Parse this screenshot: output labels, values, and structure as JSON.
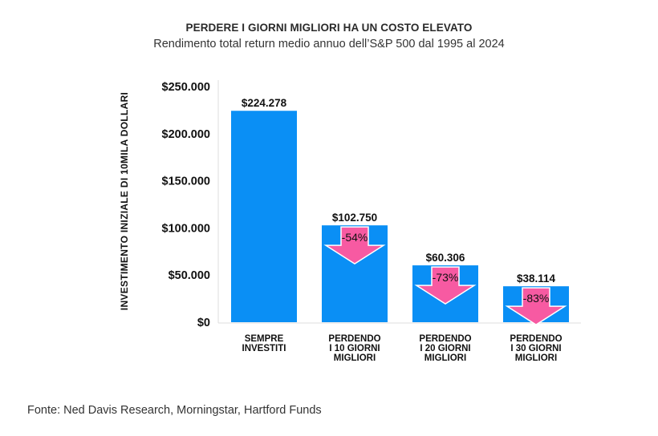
{
  "chart_data": {
    "type": "bar",
    "title": "PERDERE I GIORNI MIGLIORI HA UN COSTO ELEVATO",
    "subtitle": "Rendimento total return medio annuo dell’S&P 500 dal 1995 al 2024",
    "ylabel": "INVESTIMENTO INIZIALE DI 10MILA DOLLARI",
    "xlabel": "",
    "ylim": [
      0,
      250000
    ],
    "yticks": [
      {
        "value": 0,
        "label": "$0"
      },
      {
        "value": 50000,
        "label": "$50.000"
      },
      {
        "value": 100000,
        "label": "$100.000"
      },
      {
        "value": 150000,
        "label": "$150.000"
      },
      {
        "value": 200000,
        "label": "$200.000"
      },
      {
        "value": 250000,
        "label": "$250.000"
      }
    ],
    "categories": [
      [
        "SEMPRE",
        "INVESTITI"
      ],
      [
        "PERDENDO",
        "I 10 GIORNI",
        "MIGLIORI"
      ],
      [
        "PERDENDO",
        "I 20 GIORNI",
        "MIGLIORI"
      ],
      [
        "PERDENDO",
        "I 30 GIORNI",
        "MIGLIORI"
      ]
    ],
    "values": [
      224278,
      102750,
      60306,
      38114
    ],
    "value_labels": [
      "$224.278",
      "$102.750",
      "$60.306",
      "$38.114"
    ],
    "change_labels": [
      "",
      "-54%",
      "-73%",
      "-83%"
    ],
    "grid": false,
    "colors": {
      "bar": "#0a8ff5",
      "arrow": "#f75aa2",
      "axis": "#dddddd"
    }
  },
  "footer": {
    "source": "Fonte: Ned Davis Research, Morningstar, Hartford Funds"
  }
}
